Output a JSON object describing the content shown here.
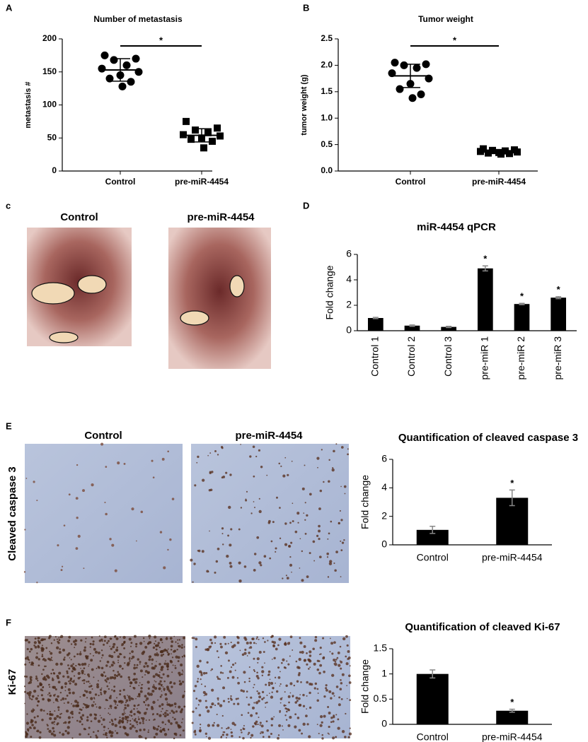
{
  "figure": {
    "panel_labels": [
      "A",
      "B",
      "c",
      "D",
      "E",
      "F"
    ],
    "photo_labels": {
      "c": [
        "Control",
        "pre-miR-4454"
      ],
      "e": [
        "Control",
        "pre-miR-4454"
      ]
    },
    "row_labels": [
      "Cleaved caspase 3",
      "Ki-67"
    ]
  },
  "chart_data": [
    {
      "type": "dotplot",
      "title": "Number of metastasis",
      "ylabel": "metastasis #",
      "categories": [
        "Control",
        "pre-miR-4454"
      ],
      "markers": [
        "circle",
        "square"
      ],
      "color": "#000000",
      "points": [
        [
          175,
          170,
          168,
          160,
          155,
          150,
          145,
          140,
          135,
          128
        ],
        [
          75,
          65,
          62,
          58,
          55,
          53,
          50,
          48,
          45,
          35
        ]
      ],
      "means": [
        153,
        54
      ],
      "errors": [
        17,
        10
      ],
      "ylim": [
        0,
        200
      ],
      "yticks": [
        0,
        50,
        100,
        150,
        200
      ],
      "significance": "*"
    },
    {
      "type": "dotplot",
      "title": "Tumor weight",
      "ylabel": "tumor weight (g)",
      "categories": [
        "Control",
        "pre-miR-4454"
      ],
      "markers": [
        "circle",
        "square"
      ],
      "color": "#000000",
      "points": [
        [
          2.05,
          2.02,
          2.0,
          1.95,
          1.85,
          1.75,
          1.65,
          1.55,
          1.45,
          1.38
        ],
        [
          0.42,
          0.4,
          0.39,
          0.38,
          0.37,
          0.36,
          0.35,
          0.34,
          0.33,
          0.32
        ]
      ],
      "means": [
        1.8,
        0.36
      ],
      "errors": [
        0.22,
        0.03
      ],
      "ylim": [
        0,
        2.5
      ],
      "yticks": [
        {
          "value": 0,
          "label": "0.0"
        },
        0.5,
        {
          "value": 1,
          "label": "1.0"
        },
        1.5,
        {
          "value": 2,
          "label": "2.0"
        },
        2.5
      ],
      "significance": "*"
    },
    {
      "type": "bar",
      "title": "miR-4454 qPCR",
      "ylabel": "Fold change",
      "categories": [
        "Control 1",
        "Control 2",
        "Control 3",
        "pre-miR 1",
        "pre-miR 2",
        "pre-miR 3"
      ],
      "values": [
        1,
        0.4,
        0.3,
        4.9,
        2.1,
        2.6
      ],
      "errors": [
        0.05,
        0.05,
        0.05,
        0.2,
        0.05,
        0.08
      ],
      "color": "#000000",
      "ylim": [
        0,
        6
      ],
      "yticks": [
        0,
        2,
        4,
        6
      ],
      "stars": [
        {
          "index": 3,
          "label": "*"
        },
        {
          "index": 4,
          "label": "*"
        },
        {
          "index": 5,
          "label": "*"
        }
      ]
    },
    {
      "type": "bar",
      "title": "Quantification of cleaved caspase 3",
      "ylabel": "Fold change",
      "categories": [
        "Control",
        "pre-miR-4454"
      ],
      "values": [
        1.05,
        3.3
      ],
      "errors": [
        0.25,
        0.55
      ],
      "color": "#000000",
      "ylim": [
        0,
        6
      ],
      "yticks": [
        0,
        2,
        4,
        6
      ],
      "stars": [
        {
          "index": 1,
          "label": "*"
        }
      ]
    },
    {
      "type": "bar",
      "title": "Quantification of cleaved Ki-67",
      "ylabel": "Fold change",
      "categories": [
        "Control",
        "pre-miR-4454"
      ],
      "values": [
        1.0,
        0.27
      ],
      "errors": [
        0.08,
        0.03
      ],
      "color": "#000000",
      "ylim": [
        0,
        1.5
      ],
      "yticks": [
        0,
        0.5,
        1,
        1.5
      ],
      "stars": [
        {
          "index": 1,
          "label": "*"
        }
      ]
    }
  ]
}
